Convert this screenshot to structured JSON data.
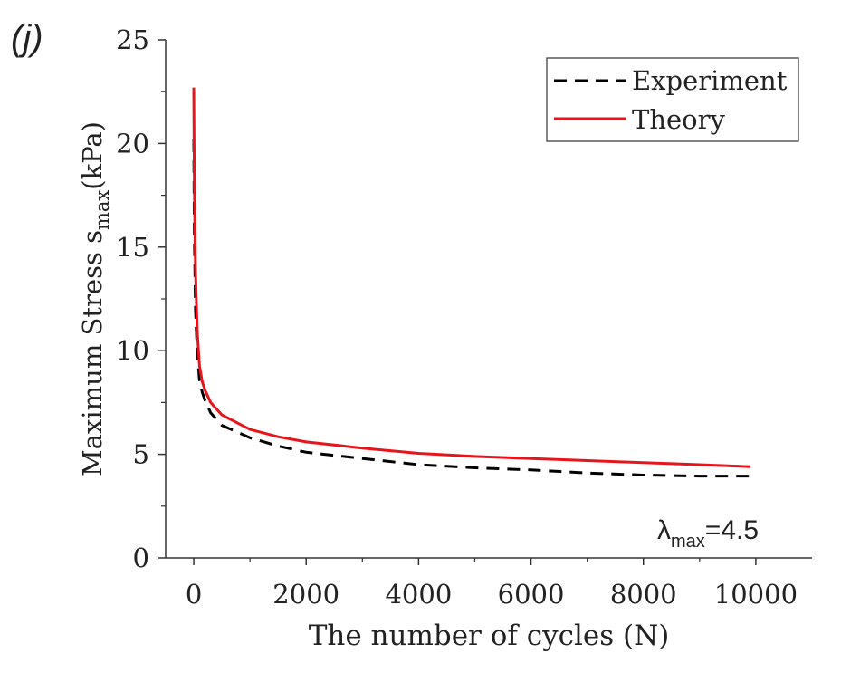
{
  "panel_label": "(j)",
  "annotation": {
    "symbol": "λ",
    "subscript": "max",
    "value_text": "=4.5"
  },
  "chart_data": {
    "type": "line",
    "xlabel": "The number of cycles (N)",
    "ylabel_main": "Maximum Stress s",
    "ylabel_sub": "max",
    "ylabel_unit": "(kPa)",
    "xlim": [
      -500,
      11000
    ],
    "ylim": [
      0,
      25
    ],
    "x_ticks": [
      0,
      2000,
      4000,
      6000,
      8000,
      10000
    ],
    "x_tick_labels": [
      "0",
      "2000",
      "4000",
      "6000",
      "8000",
      "10000"
    ],
    "y_ticks": [
      0,
      5,
      10,
      15,
      20,
      25
    ],
    "y_tick_labels": [
      "0",
      "5",
      "10",
      "15",
      "20",
      "25"
    ],
    "grid": false,
    "legend_position": "top-right",
    "series": [
      {
        "name": "Experiment",
        "style": "dashed",
        "color": "#000000",
        "x": [
          0,
          10,
          30,
          60,
          100,
          150,
          200,
          300,
          500,
          1000,
          1500,
          2000,
          3000,
          4000,
          5000,
          6000,
          7000,
          8000,
          9000,
          10000
        ],
        "y": [
          20.2,
          15.5,
          12.0,
          10.0,
          8.6,
          8.0,
          7.6,
          7.0,
          6.4,
          5.8,
          5.4,
          5.1,
          4.8,
          4.5,
          4.35,
          4.25,
          4.1,
          4.0,
          3.95,
          3.95
        ]
      },
      {
        "name": "Theory",
        "style": "solid",
        "color": "#e8141c",
        "x": [
          0,
          10,
          30,
          60,
          100,
          150,
          200,
          300,
          500,
          1000,
          1500,
          2000,
          3000,
          4000,
          5000,
          6000,
          7000,
          8000,
          9000,
          9900
        ],
        "y": [
          22.7,
          18.0,
          14.0,
          11.0,
          9.3,
          8.5,
          8.1,
          7.5,
          6.9,
          6.2,
          5.85,
          5.6,
          5.3,
          5.05,
          4.9,
          4.8,
          4.7,
          4.6,
          4.5,
          4.4
        ]
      }
    ]
  }
}
